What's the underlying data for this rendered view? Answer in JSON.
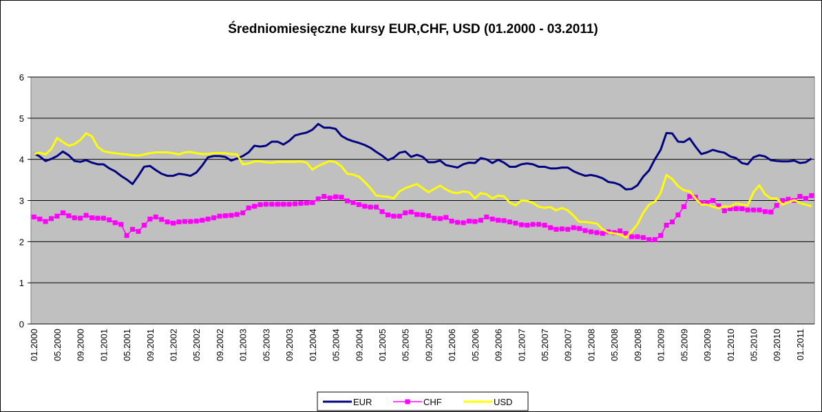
{
  "chart_data": {
    "type": "line",
    "title": "Średniomiesięczne kursy EUR,CHF, USD (01.2000 - 03.2011)",
    "categories": [
      "01.2000",
      null,
      null,
      null,
      "05.2000",
      null,
      null,
      null,
      "09.2000",
      null,
      null,
      null,
      "01.2001",
      null,
      null,
      null,
      "05.2001",
      null,
      null,
      null,
      "09.2001",
      null,
      null,
      null,
      "01.2002",
      null,
      null,
      null,
      "05.2002",
      null,
      null,
      null,
      "09.2002",
      null,
      null,
      null,
      "01.2003",
      null,
      null,
      null,
      "05.2003",
      null,
      null,
      null,
      "09.2003",
      null,
      null,
      null,
      "01.2004",
      null,
      null,
      null,
      "05.2004",
      null,
      null,
      null,
      "09.2004",
      null,
      null,
      null,
      "01.2005",
      null,
      null,
      null,
      "05.2005",
      null,
      null,
      null,
      "09.2005",
      null,
      null,
      null,
      "01.2006",
      null,
      null,
      null,
      "05.2006",
      null,
      null,
      null,
      "09.2006",
      null,
      null,
      null,
      "01.2007",
      null,
      null,
      null,
      "05.2007",
      null,
      null,
      null,
      "09.2007",
      null,
      null,
      null,
      "01.2008",
      null,
      null,
      null,
      "05.2008",
      null,
      null,
      null,
      "09.2008",
      null,
      null,
      null,
      "01.2009",
      null,
      null,
      null,
      "05.2009",
      null,
      null,
      null,
      "09.2009",
      null,
      null,
      null,
      "01.2010",
      null,
      null,
      null,
      "05.2010",
      null,
      null,
      null,
      "09.2010",
      null,
      null,
      null,
      "01.2011",
      null,
      null
    ],
    "series": [
      {
        "name": "EUR",
        "color": "#000080",
        "marker": "none",
        "values": [
          4.15,
          4.07,
          3.96,
          4.01,
          4.08,
          4.19,
          4.1,
          3.96,
          3.94,
          3.98,
          3.92,
          3.88,
          3.88,
          3.78,
          3.71,
          3.6,
          3.51,
          3.4,
          3.6,
          3.82,
          3.84,
          3.74,
          3.65,
          3.6,
          3.6,
          3.65,
          3.63,
          3.6,
          3.68,
          3.85,
          4.05,
          4.08,
          4.08,
          4.06,
          3.97,
          4.02,
          4.08,
          4.17,
          4.33,
          4.31,
          4.33,
          4.43,
          4.43,
          4.36,
          4.45,
          4.58,
          4.62,
          4.65,
          4.72,
          4.86,
          4.77,
          4.77,
          4.74,
          4.57,
          4.49,
          4.44,
          4.4,
          4.35,
          4.28,
          4.18,
          4.09,
          3.98,
          4.04,
          4.16,
          4.19,
          4.06,
          4.11,
          4.06,
          3.93,
          3.93,
          3.97,
          3.86,
          3.83,
          3.8,
          3.88,
          3.92,
          3.91,
          4.03,
          4.0,
          3.91,
          3.99,
          3.92,
          3.82,
          3.82,
          3.88,
          3.9,
          3.88,
          3.82,
          3.82,
          3.78,
          3.78,
          3.8,
          3.8,
          3.71,
          3.65,
          3.6,
          3.62,
          3.59,
          3.54,
          3.45,
          3.43,
          3.38,
          3.27,
          3.28,
          3.37,
          3.58,
          3.73,
          4.0,
          4.23,
          4.64,
          4.63,
          4.43,
          4.42,
          4.51,
          4.31,
          4.13,
          4.17,
          4.23,
          4.19,
          4.16,
          4.07,
          4.03,
          3.91,
          3.88,
          4.05,
          4.1,
          4.07,
          3.98,
          3.96,
          3.95,
          3.95,
          3.97,
          3.91,
          3.93,
          4.02
        ]
      },
      {
        "name": "CHF",
        "color": "#ff00ff",
        "marker": "square",
        "values": [
          2.6,
          2.55,
          2.49,
          2.56,
          2.62,
          2.7,
          2.63,
          2.58,
          2.57,
          2.64,
          2.58,
          2.57,
          2.57,
          2.53,
          2.46,
          2.42,
          2.15,
          2.3,
          2.25,
          2.4,
          2.55,
          2.6,
          2.54,
          2.48,
          2.45,
          2.48,
          2.49,
          2.49,
          2.5,
          2.52,
          2.55,
          2.58,
          2.62,
          2.63,
          2.64,
          2.66,
          2.7,
          2.82,
          2.86,
          2.9,
          2.91,
          2.91,
          2.91,
          2.91,
          2.91,
          2.92,
          2.93,
          2.94,
          2.95,
          3.04,
          3.1,
          3.06,
          3.09,
          3.08,
          2.99,
          2.95,
          2.9,
          2.86,
          2.84,
          2.84,
          2.73,
          2.65,
          2.62,
          2.62,
          2.7,
          2.72,
          2.66,
          2.65,
          2.63,
          2.57,
          2.56,
          2.59,
          2.5,
          2.47,
          2.46,
          2.5,
          2.49,
          2.52,
          2.6,
          2.55,
          2.52,
          2.51,
          2.48,
          2.45,
          2.41,
          2.4,
          2.42,
          2.42,
          2.4,
          2.34,
          2.3,
          2.31,
          2.3,
          2.34,
          2.32,
          2.27,
          2.24,
          2.22,
          2.2,
          2.24,
          2.22,
          2.26,
          2.2,
          2.12,
          2.12,
          2.1,
          2.05,
          2.05,
          2.15,
          2.4,
          2.48,
          2.65,
          2.85,
          3.1,
          3.08,
          2.95,
          2.95,
          3.0,
          2.87,
          2.75,
          2.8,
          2.8,
          2.8,
          2.77,
          2.77,
          2.77,
          2.73,
          2.72,
          2.88,
          3.0,
          3.03,
          3.0,
          3.1,
          3.05,
          3.12
        ]
      },
      {
        "name": "USD",
        "color": "#ffff00",
        "marker": "none",
        "values": [
          4.13,
          4.16,
          4.12,
          4.25,
          4.52,
          4.42,
          4.33,
          4.37,
          4.47,
          4.63,
          4.56,
          4.3,
          4.2,
          4.17,
          4.15,
          4.13,
          4.12,
          4.1,
          4.09,
          4.12,
          4.15,
          4.17,
          4.17,
          4.17,
          4.15,
          4.12,
          4.17,
          4.18,
          4.15,
          4.13,
          4.13,
          4.15,
          4.15,
          4.15,
          4.13,
          4.12,
          3.88,
          3.9,
          3.95,
          3.95,
          3.93,
          3.92,
          3.94,
          3.94,
          3.94,
          3.94,
          3.95,
          3.92,
          3.75,
          3.84,
          3.9,
          3.96,
          3.93,
          3.83,
          3.65,
          3.63,
          3.58,
          3.45,
          3.3,
          3.12,
          3.1,
          3.09,
          3.05,
          3.22,
          3.3,
          3.35,
          3.4,
          3.3,
          3.2,
          3.28,
          3.36,
          3.27,
          3.2,
          3.18,
          3.22,
          3.2,
          3.05,
          3.18,
          3.15,
          3.05,
          3.12,
          3.1,
          2.95,
          2.88,
          3.0,
          2.99,
          2.94,
          2.85,
          2.82,
          2.84,
          2.76,
          2.82,
          2.76,
          2.63,
          2.48,
          2.48,
          2.46,
          2.44,
          2.3,
          2.22,
          2.2,
          2.18,
          2.1,
          2.25,
          2.42,
          2.7,
          2.9,
          2.97,
          3.18,
          3.62,
          3.52,
          3.35,
          3.25,
          3.22,
          3.05,
          2.9,
          2.9,
          2.85,
          2.81,
          2.86,
          2.85,
          2.93,
          2.9,
          2.88,
          3.2,
          3.37,
          3.15,
          3.05,
          3.05,
          2.9,
          2.96,
          3.01,
          2.94,
          2.9,
          2.86
        ]
      }
    ],
    "ylim": [
      0,
      6
    ],
    "yticks": [
      0,
      1,
      2,
      3,
      4,
      5,
      6
    ],
    "grid": true,
    "legend": "bottom"
  }
}
